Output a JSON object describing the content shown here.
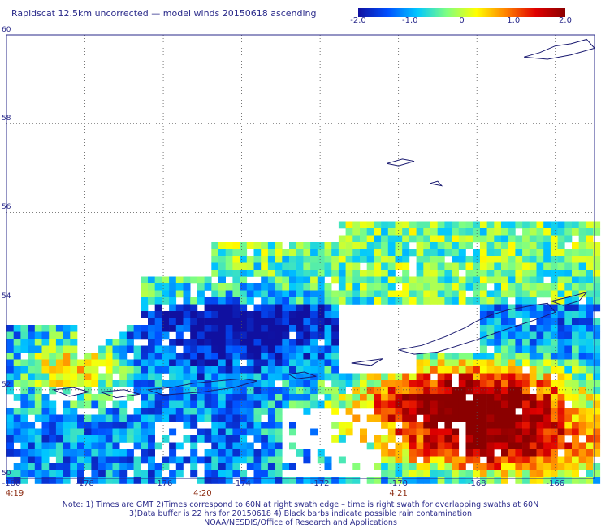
{
  "title": "Rapidscat 12.5km uncorrected — model winds 20150618 ascending",
  "colorbar": {
    "min": -2.0,
    "max": 2.0,
    "tick_labels": [
      "-2.0",
      "-1.0",
      "0",
      "1.0",
      "2.0"
    ],
    "tick_values": [
      -2.0,
      -1.0,
      0,
      1.0,
      2.0
    ],
    "colors": [
      "#1010a0",
      "#0050ff",
      "#00c8ff",
      "#80ff80",
      "#ffff00",
      "#ff8000",
      "#e00000",
      "#8b0000"
    ]
  },
  "map": {
    "lat_range": [
      50,
      60
    ],
    "lon_range": [
      -180,
      -165
    ],
    "lat_labels": [
      "50",
      "52",
      "54",
      "56",
      "58",
      "60"
    ],
    "lon_labels": [
      "-180",
      "-178",
      "-176",
      "-174",
      "-172",
      "-170",
      "-168",
      "-166"
    ],
    "time_labels": [
      {
        "text": "4:19",
        "lon": -180
      },
      {
        "text": "4:20",
        "lon": -175
      },
      {
        "text": "4:21",
        "lon": -170
      }
    ]
  },
  "notes": [
    "Note: 1) Times are GMT 2)Times correspond to 60N at right swath edge – time is right swath for overlapping swaths at 60N",
    "3)Data buffer is 22 hrs for 20150618 4) Black barbs indicate possible rain contamination",
    "NOAA/NESDIS/Office of Research and Applications"
  ]
}
